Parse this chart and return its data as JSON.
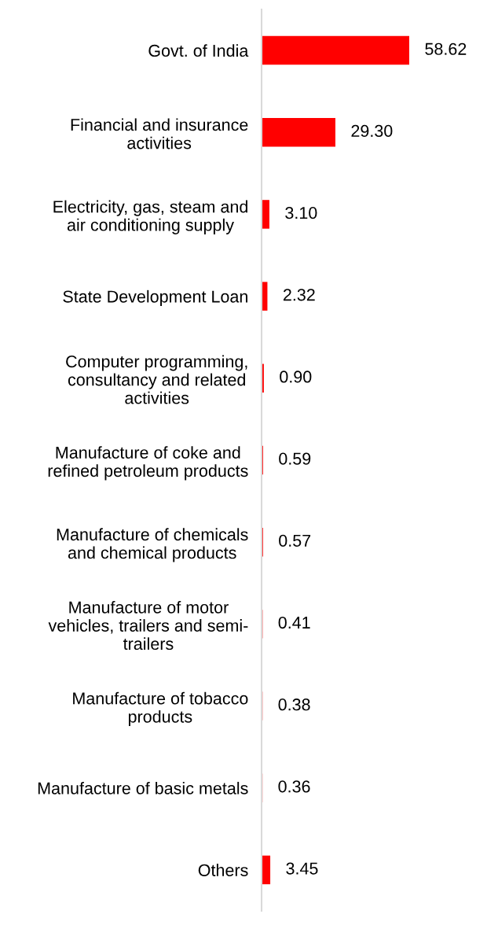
{
  "chart_data": {
    "type": "bar",
    "orientation": "horizontal",
    "categories": [
      "Govt. of India",
      "Financial and insurance\nactivities",
      "Electricity, gas, steam and\nair conditioning supply",
      "State Development Loan",
      "Computer programming,\nconsultancy and related\nactivities",
      "Manufacture of coke and\nrefined petroleum products",
      "Manufacture of chemicals\nand chemical products",
      "Manufacture of motor\nvehicles, trailers and semi-\ntrailers",
      "Manufacture of tobacco\nproducts",
      "Manufacture of basic metals",
      "Others"
    ],
    "values": [
      58.62,
      29.3,
      3.1,
      2.32,
      0.9,
      0.59,
      0.57,
      0.41,
      0.38,
      0.36,
      3.45
    ],
    "value_labels": [
      "58.62",
      "29.30",
      "3.10",
      "2.32",
      "0.90",
      "0.59",
      "0.57",
      "0.41",
      "0.38",
      "0.36",
      "3.45"
    ],
    "color": "#ff0000",
    "tick_labels": "y"
  }
}
